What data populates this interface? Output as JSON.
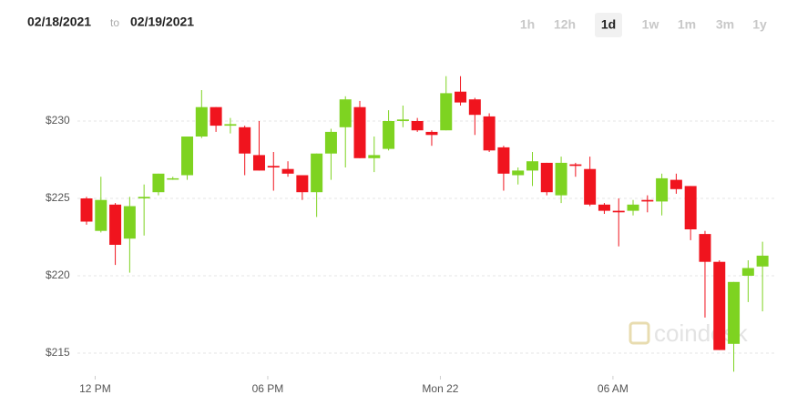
{
  "header": {
    "from": "02/18/2021",
    "to_word": "to",
    "to": "02/19/2021"
  },
  "range_buttons": [
    "1h",
    "12h",
    "1d",
    "1w",
    "1m",
    "3m",
    "1y"
  ],
  "selected_index": 2,
  "chart_data": {
    "type": "candlestick",
    "watermark": "coindesk",
    "up_color": "#7ed321",
    "down_color": "#f0141e",
    "categories": [
      null,
      null,
      null,
      null,
      null,
      null,
      null,
      null,
      null,
      null,
      null,
      null,
      null,
      null,
      null,
      null,
      null,
      null,
      null,
      null,
      null,
      null,
      null,
      null,
      null,
      null,
      null,
      null,
      null,
      null,
      null,
      null,
      null,
      null,
      null,
      null,
      null,
      null,
      null,
      null,
      null,
      null,
      null,
      null,
      null,
      null,
      null,
      null
    ],
    "open": [
      225.0,
      222.9,
      224.6,
      222.4,
      225.0,
      225.4,
      226.3,
      226.5,
      229.0,
      230.9,
      229.7,
      229.6,
      227.8,
      227.1,
      226.9,
      226.5,
      225.4,
      227.9,
      229.6,
      230.9,
      227.6,
      228.2,
      230.0,
      230.0,
      229.3,
      229.4,
      231.9,
      231.4,
      230.3,
      228.3,
      226.5,
      226.8,
      227.3,
      225.2,
      227.2,
      226.9,
      224.6,
      224.2,
      224.2,
      224.9,
      224.8,
      226.2,
      225.8,
      222.7,
      220.9,
      215.6,
      220.0,
      220.6
    ],
    "high": [
      225.1,
      226.4,
      224.7,
      225.1,
      225.9,
      226.6,
      226.4,
      229.0,
      232.0,
      230.9,
      230.2,
      229.7,
      230.0,
      228.0,
      227.4,
      226.5,
      227.9,
      229.5,
      231.6,
      231.3,
      229.0,
      230.7,
      231.0,
      230.2,
      229.4,
      232.9,
      232.9,
      231.5,
      230.5,
      228.4,
      227.0,
      228.0,
      227.3,
      227.7,
      227.3,
      227.7,
      224.7,
      225.0,
      224.9,
      225.2,
      226.6,
      226.6,
      225.8,
      222.9,
      221.0,
      219.6,
      221.0,
      222.2
    ],
    "low": [
      223.3,
      222.8,
      220.7,
      220.2,
      222.6,
      225.2,
      226.2,
      226.2,
      228.9,
      229.3,
      229.2,
      226.5,
      226.8,
      225.5,
      226.4,
      224.9,
      223.8,
      226.2,
      227.0,
      227.6,
      226.7,
      228.1,
      229.6,
      229.3,
      228.4,
      229.4,
      231.0,
      229.1,
      228.0,
      225.5,
      225.9,
      225.8,
      225.2,
      224.7,
      226.4,
      224.5,
      224.0,
      221.9,
      223.9,
      224.1,
      223.9,
      225.3,
      222.3,
      217.3,
      215.2,
      213.8,
      218.3,
      217.7
    ],
    "close": [
      223.5,
      224.9,
      222.0,
      224.5,
      225.1,
      226.6,
      226.3,
      229.0,
      230.9,
      229.7,
      229.8,
      227.9,
      226.8,
      227.0,
      226.6,
      225.4,
      227.9,
      229.3,
      231.4,
      227.6,
      227.8,
      230.0,
      230.1,
      229.4,
      229.1,
      231.8,
      231.2,
      230.4,
      228.1,
      226.6,
      226.8,
      227.4,
      225.4,
      227.3,
      227.1,
      224.6,
      224.2,
      224.1,
      224.6,
      224.8,
      226.3,
      225.6,
      223.0,
      220.9,
      215.2,
      219.6,
      220.5,
      221.3
    ],
    "ylim": [
      213.5,
      233.5
    ],
    "yticks": [
      {
        "value": 215,
        "label": "$215"
      },
      {
        "value": 220,
        "label": "$220"
      },
      {
        "value": 225,
        "label": "$225"
      },
      {
        "value": 230,
        "label": "$230"
      }
    ],
    "xticks": [
      {
        "value": 0.6,
        "label": "12 PM"
      },
      {
        "value": 12.6,
        "label": "06 PM"
      },
      {
        "value": 24.6,
        "label": "Mon 22"
      },
      {
        "value": 36.6,
        "label": "06 AM"
      }
    ],
    "grid": true
  }
}
